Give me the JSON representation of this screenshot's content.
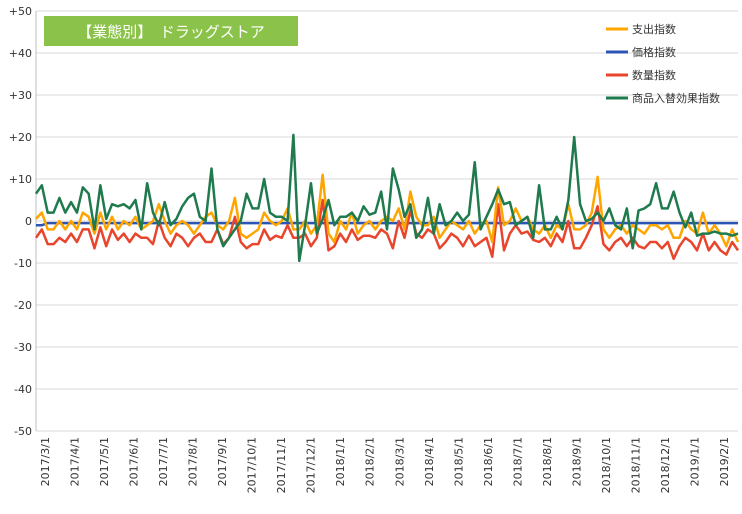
{
  "chart_data": {
    "type": "line",
    "title": "【業態別】　ドラッグストア",
    "title_bg_color": "#8BC34A",
    "title_color": "#ffffff",
    "ylim": [
      -50,
      50
    ],
    "yticks": [
      "+50",
      "+40",
      "+30",
      "+20",
      "+10",
      "0",
      "-10",
      "-20",
      "-30",
      "-40",
      "-50"
    ],
    "grid": true,
    "legend_position": "top-right",
    "x_tick_labels": [
      "2017/3/1",
      "2017/4/1",
      "2017/5/1",
      "2017/6/1",
      "2017/7/1",
      "2017/8/1",
      "2017/9/1",
      "2017/10/1",
      "2017/11/1",
      "2017/12/1",
      "2018/1/1",
      "2018/2/1",
      "2018/3/1",
      "2018/4/1",
      "2018/5/1",
      "2018/6/1",
      "2018/7/1",
      "2018/8/1",
      "2018/9/1",
      "2018/10/1",
      "2018/11/1",
      "2018/12/1",
      "2019/1/1",
      "2019/2/1"
    ],
    "x_start": "2017/3/1",
    "x_interval": "week",
    "series": [
      {
        "name": "支出指数",
        "color": "#FFA500",
        "values": [
          0.5,
          2,
          -2,
          -2,
          0,
          -2,
          0,
          -2,
          2,
          1,
          -3,
          2,
          -2,
          1,
          -2,
          0,
          -1,
          1,
          -2,
          -1,
          0,
          4,
          0,
          -3,
          -1,
          0,
          -1,
          -3,
          -1,
          1,
          2,
          -1,
          -2,
          0,
          5.5,
          -3,
          -4,
          -3,
          -2,
          2,
          0,
          -1,
          0,
          3,
          -2,
          -2,
          0,
          -3,
          -1,
          11,
          -3,
          -5,
          0,
          -2,
          2,
          -3,
          -1,
          0,
          -2,
          0,
          1,
          0,
          3,
          -2,
          7,
          1,
          -1,
          -1,
          1,
          -4,
          -2,
          0,
          -1,
          -2,
          0,
          -3,
          -1,
          0,
          -5,
          8,
          -1,
          0,
          3,
          0,
          1,
          -2,
          -3,
          -1,
          -4,
          -1,
          -2,
          4,
          -2,
          -2,
          -1,
          2,
          10.5,
          -2,
          -4,
          -2,
          -1,
          -3,
          -1,
          -2,
          -3,
          -1,
          -1,
          -2,
          -1,
          -4,
          -4,
          0,
          -2,
          -3,
          2,
          -3,
          -1,
          -3,
          -6,
          -2,
          -5
        ]
      },
      {
        "name": "価格指数",
        "color": "#2B55B5",
        "values": [
          -1,
          -1,
          -0.5,
          -0.5,
          -0.5,
          -0.5,
          -0.5,
          -0.5,
          -0.5,
          -0.5,
          -0.5,
          -0.5,
          -0.5,
          -0.5,
          -0.5,
          -0.5,
          -0.5,
          -0.5,
          -0.5,
          -0.5,
          -0.5,
          -0.5,
          -0.5,
          -0.5,
          -0.5,
          -0.5,
          -0.5,
          -0.5,
          -0.5,
          -0.5,
          -0.5,
          -0.5,
          -0.5,
          -0.5,
          -0.5,
          -0.5,
          -0.5,
          -0.5,
          -0.5,
          -0.5,
          -0.5,
          -0.5,
          -0.5,
          -0.5,
          -0.5,
          -0.5,
          -0.5,
          -0.5,
          -0.5,
          -0.5,
          -0.5,
          -0.5,
          -0.5,
          -0.5,
          -0.5,
          -0.5,
          -0.5,
          -0.5,
          -0.5,
          -0.5,
          -0.5,
          -0.5,
          -0.5,
          -0.5,
          -0.5,
          -0.5,
          -0.5,
          -0.5,
          -0.5,
          -0.5,
          -0.5,
          -0.5,
          -0.5,
          -0.5,
          -0.5,
          -0.5,
          -0.5,
          -0.5,
          -0.5,
          -0.5,
          -0.5,
          -0.5,
          -0.5,
          -0.5,
          -0.5,
          -0.5,
          -0.5,
          -0.5,
          -0.5,
          -0.5,
          -0.5,
          -0.5,
          -0.5,
          -0.5,
          -0.5,
          -0.5,
          -0.5,
          -0.5,
          -0.5,
          -0.5,
          -0.5,
          -0.5,
          -0.5,
          -0.5,
          -0.5,
          -0.5,
          -0.5,
          -0.5,
          -0.5,
          -0.5,
          -0.5,
          -0.5,
          -0.5,
          -0.5,
          -0.5,
          -0.5,
          -0.5,
          -0.5,
          -0.5,
          -0.5,
          -0.5
        ]
      },
      {
        "name": "数量指数",
        "color": "#E8452C",
        "values": [
          -4,
          -2,
          -5.5,
          -5.5,
          -4,
          -5,
          -3,
          -5,
          -2,
          -2,
          -6.5,
          -1.5,
          -6,
          -2,
          -4.5,
          -3,
          -5,
          -3,
          -4,
          -4,
          -5.5,
          0,
          -4,
          -6,
          -3,
          -4,
          -6,
          -4,
          -3,
          -5,
          -5,
          -2,
          -5.5,
          -4,
          1,
          -5,
          -6.5,
          -5.5,
          -5.5,
          -2,
          -4.5,
          -3.5,
          -4,
          -1,
          -4,
          -4,
          -3,
          -6,
          -4,
          5,
          -7,
          -6,
          -3,
          -5,
          -2,
          -4.5,
          -3.5,
          -3.5,
          -4,
          -2,
          -3,
          -6.5,
          0,
          -4,
          2.5,
          -3,
          -4,
          -2,
          -3,
          -6.5,
          -5,
          -3,
          -4,
          -6,
          -3.5,
          -6,
          -5,
          -4,
          -8.5,
          4,
          -7,
          -3,
          -1,
          -3,
          -2.5,
          -4.5,
          -5,
          -4,
          -6,
          -3,
          -5,
          0,
          -6.5,
          -6.5,
          -4,
          -1,
          3.5,
          -5.5,
          -7,
          -5,
          -4,
          -6,
          -4,
          -6,
          -6.5,
          -5,
          -5,
          -6.5,
          -5,
          -9,
          -6,
          -4,
          -5,
          -7,
          -3,
          -7,
          -5,
          -7,
          -8,
          -5,
          -7
        ]
      },
      {
        "name": "商品入替効果指数",
        "color": "#1F7A4D",
        "values": [
          6.5,
          8.5,
          2,
          2,
          5.5,
          2,
          4.5,
          2,
          8,
          6.5,
          -2,
          8.5,
          0.5,
          4,
          3.5,
          4,
          3,
          5,
          -2,
          9,
          2,
          -1,
          4.5,
          -1,
          0.5,
          3.5,
          5.5,
          6.5,
          1,
          0,
          12.5,
          -2,
          -6,
          -4,
          -2,
          0,
          6.5,
          3,
          3,
          10,
          2,
          1,
          1,
          0,
          20.5,
          -9.5,
          -1,
          9,
          -3,
          0.5,
          5,
          -1,
          1,
          1,
          2,
          0,
          3.5,
          1.5,
          2,
          7,
          -2,
          12.5,
          7.5,
          1,
          4,
          -4,
          -2,
          5.5,
          -3,
          4,
          -1,
          0,
          2,
          0,
          1.5,
          14,
          -2,
          1,
          4,
          7.5,
          4,
          4.5,
          -1,
          0,
          1,
          -4,
          8.5,
          -2,
          -2,
          1,
          -2,
          5,
          20,
          4,
          0,
          0.5,
          2,
          0,
          3,
          -1,
          -2,
          3,
          -6.5,
          2.5,
          3,
          4,
          9,
          3,
          3,
          7,
          2,
          -1.5,
          2,
          -3.5,
          -3,
          -3,
          -2.5,
          -3,
          -3,
          -3.5,
          -3
        ]
      }
    ]
  }
}
